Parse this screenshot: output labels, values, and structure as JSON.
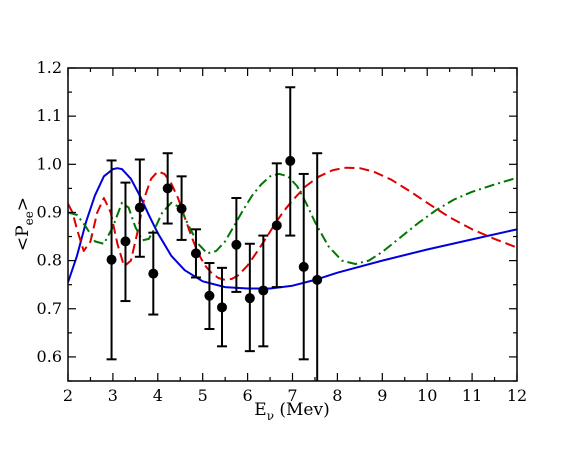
{
  "chart_data": {
    "type": "scatter",
    "title": "",
    "xlabel": {
      "main": "E",
      "sub": "ν",
      "rest": " (Mev)"
    },
    "ylabel": {
      "pre": "<P",
      "sub": "ee",
      "post": ">"
    },
    "xlim": [
      2,
      12
    ],
    "ylim": [
      0.55,
      1.2
    ],
    "xticks": [
      2,
      3,
      4,
      5,
      6,
      7,
      8,
      9,
      10,
      11,
      12
    ],
    "yticks": [
      0.6,
      0.7,
      0.8,
      0.9,
      1.0,
      1.1,
      1.2
    ],
    "ytick_labels": [
      "0.6",
      "0.7",
      "0.8",
      "0.9",
      "1.0",
      "1.1",
      "1.2"
    ],
    "grid": false,
    "points": [
      {
        "x": 2.97,
        "y": 0.802,
        "lo": 0.595,
        "hi": 1.008
      },
      {
        "x": 3.28,
        "y": 0.84,
        "lo": 0.716,
        "hi": 0.962
      },
      {
        "x": 3.6,
        "y": 0.91,
        "lo": 0.808,
        "hi": 1.01
      },
      {
        "x": 3.9,
        "y": 0.773,
        "lo": 0.688,
        "hi": 0.858
      },
      {
        "x": 4.22,
        "y": 0.95,
        "lo": 0.877,
        "hi": 1.023
      },
      {
        "x": 4.53,
        "y": 0.908,
        "lo": 0.843,
        "hi": 0.975
      },
      {
        "x": 4.85,
        "y": 0.815,
        "lo": 0.765,
        "hi": 0.865
      },
      {
        "x": 5.15,
        "y": 0.727,
        "lo": 0.658,
        "hi": 0.795
      },
      {
        "x": 5.43,
        "y": 0.703,
        "lo": 0.622,
        "hi": 0.785
      },
      {
        "x": 5.75,
        "y": 0.833,
        "lo": 0.735,
        "hi": 0.93
      },
      {
        "x": 6.05,
        "y": 0.722,
        "lo": 0.612,
        "hi": 0.835
      },
      {
        "x": 6.35,
        "y": 0.738,
        "lo": 0.622,
        "hi": 0.852
      },
      {
        "x": 6.65,
        "y": 0.873,
        "lo": 0.745,
        "hi": 1.002
      },
      {
        "x": 6.95,
        "y": 1.007,
        "lo": 0.852,
        "hi": 1.16
      },
      {
        "x": 7.25,
        "y": 0.787,
        "lo": 0.595,
        "hi": 0.98
      },
      {
        "x": 7.55,
        "y": 0.76,
        "lo": 0.5,
        "hi": 1.023
      }
    ],
    "series": [
      {
        "style": "solid",
        "color": "#0000dd",
        "x": [
          2.0,
          2.2,
          2.4,
          2.6,
          2.8,
          3.0,
          3.1,
          3.2,
          3.4,
          3.6,
          3.8,
          4.0,
          4.3,
          4.6,
          5.0,
          5.5,
          6.0,
          6.5,
          7.0,
          7.5,
          8.0,
          9.0,
          10.0,
          11.0,
          12.0
        ],
        "y": [
          0.755,
          0.81,
          0.88,
          0.935,
          0.975,
          0.99,
          0.992,
          0.99,
          0.97,
          0.935,
          0.895,
          0.857,
          0.81,
          0.78,
          0.757,
          0.745,
          0.742,
          0.742,
          0.748,
          0.76,
          0.775,
          0.8,
          0.823,
          0.844,
          0.865
        ]
      },
      {
        "style": "dashed",
        "color": "#dd0000",
        "x": [
          2.0,
          2.1,
          2.2,
          2.35,
          2.5,
          2.65,
          2.8,
          2.95,
          3.1,
          3.25,
          3.4,
          3.55,
          3.7,
          3.85,
          4.0,
          4.15,
          4.3,
          4.45,
          4.6,
          4.75,
          4.9,
          5.05,
          5.2,
          5.35,
          5.5,
          5.65,
          5.8,
          6.0,
          6.2,
          6.4,
          6.6,
          6.8,
          7.0,
          7.3,
          7.6,
          7.9,
          8.2,
          8.5,
          8.8,
          9.2,
          9.6,
          10.0,
          10.5,
          11.0,
          11.5,
          12.0
        ],
        "y": [
          0.918,
          0.9,
          0.865,
          0.82,
          0.84,
          0.9,
          0.93,
          0.9,
          0.835,
          0.788,
          0.8,
          0.86,
          0.93,
          0.97,
          0.985,
          0.98,
          0.96,
          0.93,
          0.89,
          0.85,
          0.815,
          0.79,
          0.774,
          0.764,
          0.76,
          0.762,
          0.77,
          0.79,
          0.817,
          0.845,
          0.875,
          0.902,
          0.925,
          0.955,
          0.975,
          0.988,
          0.993,
          0.992,
          0.985,
          0.968,
          0.945,
          0.92,
          0.89,
          0.865,
          0.845,
          0.827
        ]
      },
      {
        "style": "dashdot",
        "color": "#007700",
        "x": [
          2.0,
          2.2,
          2.4,
          2.6,
          2.8,
          3.0,
          3.2,
          3.35,
          3.5,
          3.65,
          3.8,
          3.95,
          4.1,
          4.3,
          4.5,
          4.7,
          4.9,
          5.1,
          5.3,
          5.5,
          5.7,
          5.9,
          6.1,
          6.3,
          6.5,
          6.7,
          6.9,
          7.1,
          7.3,
          7.5,
          7.8,
          8.1,
          8.4,
          8.7,
          9.0,
          9.4,
          9.8,
          10.2,
          10.6,
          11.0,
          11.5,
          12.0
        ],
        "y": [
          0.9,
          0.895,
          0.87,
          0.84,
          0.835,
          0.87,
          0.92,
          0.91,
          0.87,
          0.842,
          0.845,
          0.87,
          0.9,
          0.92,
          0.91,
          0.87,
          0.835,
          0.815,
          0.82,
          0.84,
          0.872,
          0.905,
          0.935,
          0.958,
          0.975,
          0.98,
          0.975,
          0.955,
          0.92,
          0.88,
          0.83,
          0.8,
          0.793,
          0.8,
          0.818,
          0.848,
          0.878,
          0.905,
          0.927,
          0.943,
          0.958,
          0.972
        ]
      }
    ]
  }
}
